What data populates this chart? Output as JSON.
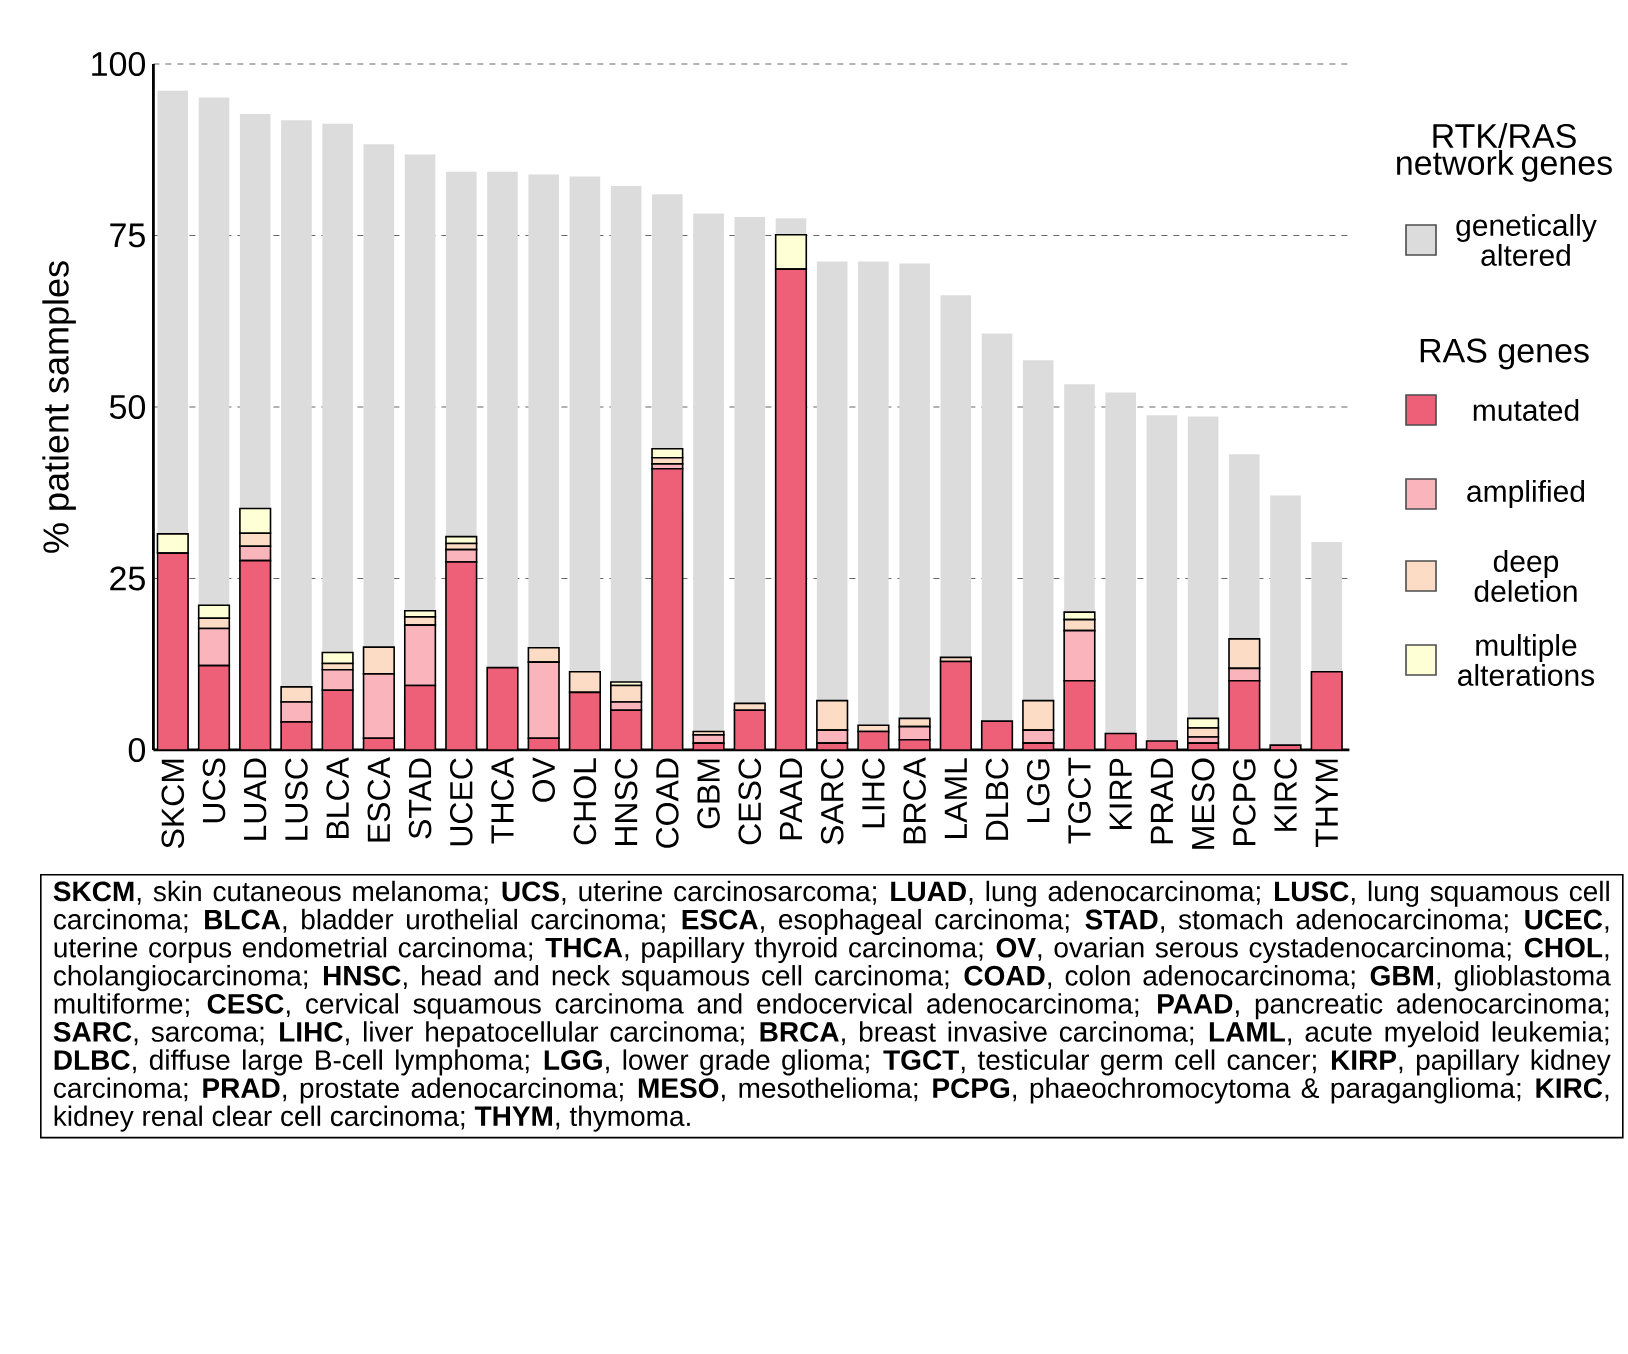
{
  "chart_data": {
    "type": "bar",
    "stacked": true,
    "ylabel": "% patient samples",
    "legend_title": "RTK/RAS network genes",
    "legend": "right",
    "grid": "y",
    "categories": [
      "SKCM",
      "UCS",
      "LUAD",
      "LUSC",
      "BLCA",
      "ESCA",
      "STAD",
      "UCEC",
      "THCA",
      "OV",
      "CHOL",
      "HNSC",
      "COAD",
      "GBM",
      "CESC",
      "PAAD",
      "SARC",
      "LIHC",
      "BRCA",
      "LAML",
      "DLBC",
      "LGG",
      "TGCT",
      "KIRP",
      "PRAD",
      "MESO",
      "PCPG",
      "KIRC",
      "THYM"
    ],
    "ylim": [
      0,
      100
    ],
    "yticks": [
      0,
      25,
      50,
      75,
      100
    ],
    "series": [
      {
        "name": "mutated",
        "color": "#ee5f78",
        "values": [
          28.7,
          12.3,
          27.6,
          4.1,
          8.7,
          1.7,
          9.4,
          27.4,
          12.0,
          1.7,
          8.4,
          5.8,
          41.0,
          1.0,
          5.8,
          70.1,
          1.0,
          2.7,
          1.5,
          12.9,
          4.2,
          1.0,
          10.1,
          2.4,
          1.3,
          1.0,
          10.1,
          0.7,
          11.4
        ]
      },
      {
        "name": "amplified",
        "color": "#f9b5bb",
        "values": [
          null,
          5.4,
          2.1,
          2.9,
          3.0,
          9.4,
          8.8,
          1.8,
          0,
          11.1,
          0,
          1.2,
          0.7,
          1.2,
          0,
          0,
          1.9,
          0,
          1.9,
          0,
          0,
          1.9,
          7.3,
          0,
          null,
          0.9,
          1.8,
          0,
          0
        ]
      },
      {
        "name": "deep deletion",
        "color": "#fddcc5",
        "values": [
          null,
          1.5,
          1.9,
          2.2,
          0.9,
          3.9,
          1.2,
          0.9,
          0,
          2.1,
          3.0,
          2.4,
          0.9,
          0.5,
          1.0,
          0,
          4.3,
          0.9,
          1.2,
          0.6,
          0,
          4.3,
          1.6,
          0,
          0,
          1.3,
          4.3,
          0,
          0
        ]
      },
      {
        "name": "multiple alterations",
        "color": "#ffffd6",
        "values": [
          2.8,
          1.9,
          3.6,
          0,
          1.6,
          0,
          0.9,
          1.0,
          0,
          0,
          0,
          0.5,
          1.3,
          null,
          0,
          5.0,
          0,
          0,
          0,
          0,
          0,
          0,
          1.1,
          0,
          0,
          1.4,
          0,
          0,
          0
        ]
      },
      {
        "name": "genetically altered",
        "color": "#dcdcdc",
        "values": [
          64.6,
          74.0,
          57.5,
          82.6,
          77.1,
          73.3,
          66.5,
          53.2,
          72.3,
          69.0,
          72.2,
          72.3,
          37.1,
          75.5,
          70.9,
          2.4,
          64.0,
          67.6,
          66.3,
          52.8,
          56.5,
          49.6,
          33.2,
          49.7,
          47.5,
          44.0,
          26.9,
          36.4,
          18.9
        ]
      }
    ],
    "annotations": [
      "RAS genes",
      "**SKCM**, skin cutaneous melanoma; **UCS**, uterine carcinosarcoma; **LUAD**, lung adenocarcinoma; **LUSC**, lung squamous cell carcinoma; **BLCA**, bladder urothelial carcinoma; **ESCA**, esophageal carcinoma; **STAD**, stomach adenocarcinoma; **UCEC**, uterine corpus endometrial carcinoma; **THCA**, papillary thyroid carcinoma; **OV**, ovarian serous cystadenocarcinoma; **CHOL**, cholangiocarcinoma; **HNSC**, head and neck squamous cell carcinoma; **COAD**, colon adenocarcinoma; **GBM**, glioblastoma multiforme; **CESC**, cervical squamous carcinoma and endocervical adenocarcinoma; **PAAD**, pancreatic adenocarcinoma; **SARC**, sarcoma; **LIHC**, liver hepatocellular carcinoma; **BRCA**, breast invasive carcinoma; **LAML**, acute myeloid leukemia; **DLBC**, diffuse large B-cell lymphoma; **LGG**, lower grade glioma; **TGCT**, testicular germ cell cancer; **KIRP**, papillary kidney carcinoma; **PRAD**, prostate adenocarcinoma; **MESO**, mesothelioma; **PCPG**, phaeochromocytoma & paraganglioma; **KIRC**, kidney renal clear cell carcinoma; **THYM**, thymoma."
    ]
  }
}
